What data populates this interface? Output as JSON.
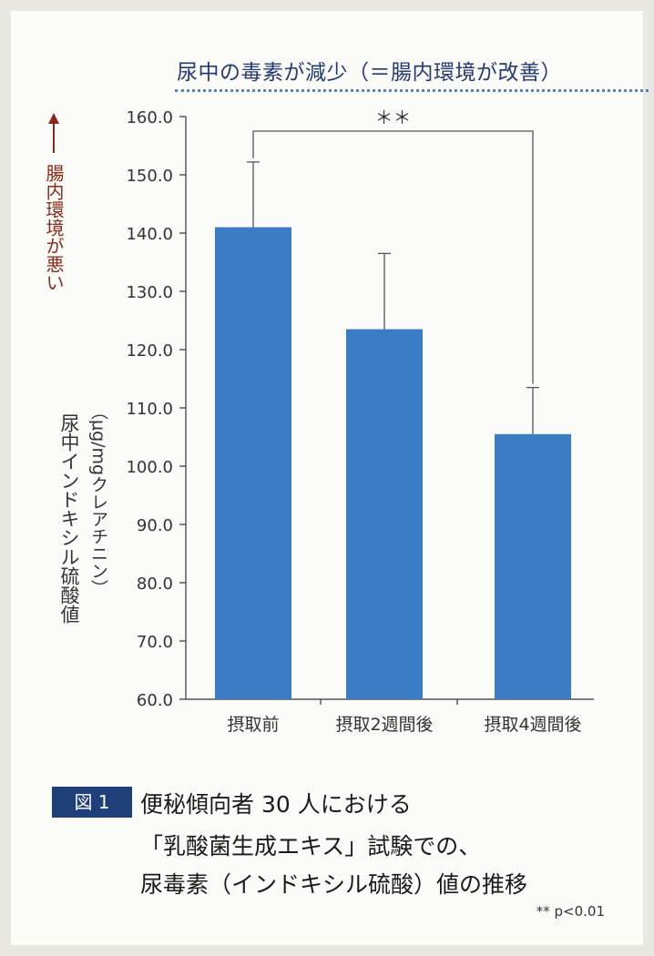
{
  "headline": "尿中の毒素が減少（＝腸内環境が改善）",
  "chart_data": {
    "type": "bar",
    "categories": [
      "摂取前",
      "摂取2週間後",
      "摂取4週間後"
    ],
    "values": [
      141.0,
      123.5,
      105.5
    ],
    "error_upper": [
      152.2,
      136.5,
      113.5
    ],
    "ylim": [
      60.0,
      160.0
    ],
    "yticks": [
      "60.0",
      "70.0",
      "80.0",
      "90.0",
      "100.0",
      "110.0",
      "120.0",
      "130.0",
      "140.0",
      "150.0",
      "160.0"
    ],
    "ylabel": "尿中インドキシル硫酸値",
    "ylabel_unit": "（μg/mgクレアチニン）",
    "direction_label": "腸内環境が悪い",
    "significance_label": "＊＊",
    "bar_color": "#3a7dc4",
    "direction_color": "#8b2a1a"
  },
  "caption": {
    "tag": "図 1",
    "lines": [
      "便秘傾向者 30 人における",
      "「乳酸菌生成エキス」試験での、",
      "尿毒素（インドキシル硫酸）値の推移"
    ]
  },
  "note": "** p<0.01"
}
